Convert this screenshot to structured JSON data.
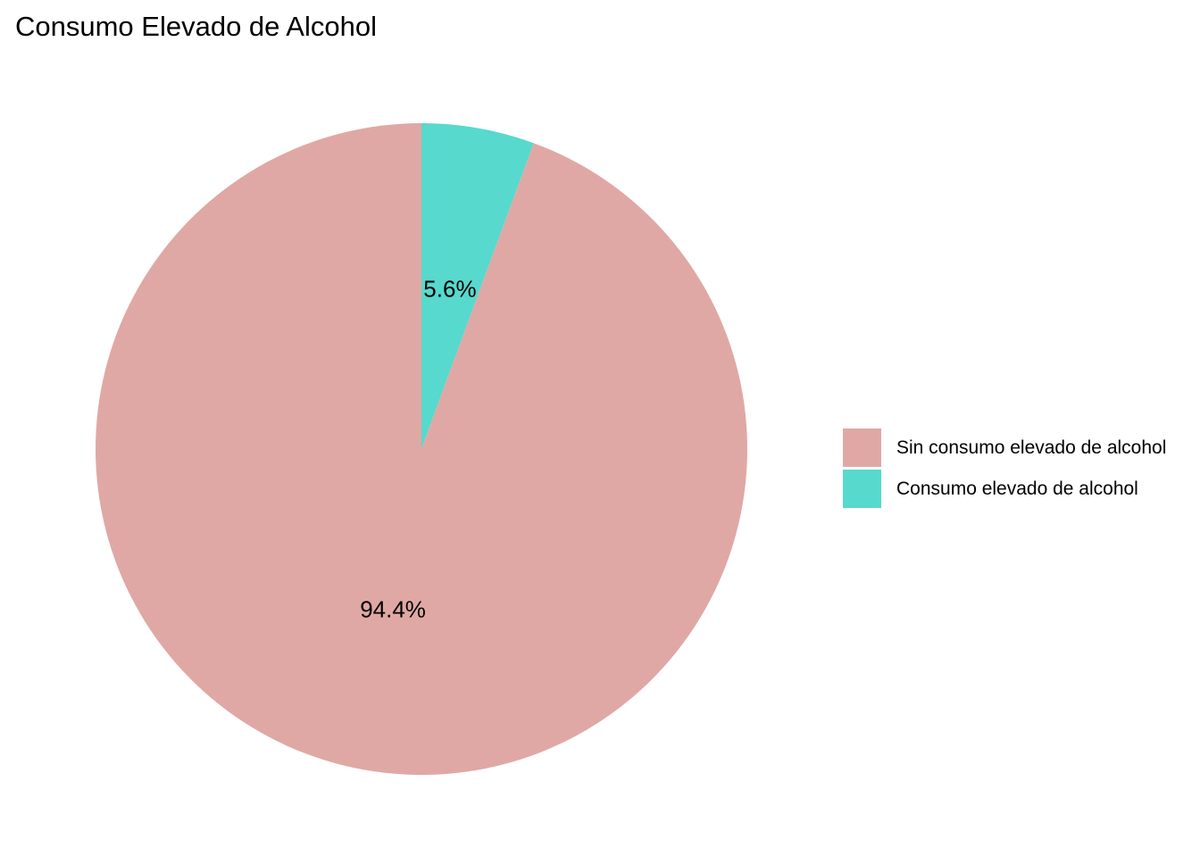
{
  "chart_data": {
    "type": "pie",
    "title": "Consumo Elevado de Alcohol",
    "slices": [
      {
        "name": "Sin consumo elevado de alcohol",
        "value": 94.4,
        "label": "94.4%",
        "color": "#E0A8A4"
      },
      {
        "name": "Consumo elevado de alcohol",
        "value": 5.6,
        "label": "5.6%",
        "color": "#57D9CD"
      }
    ],
    "legend_position": "right"
  }
}
